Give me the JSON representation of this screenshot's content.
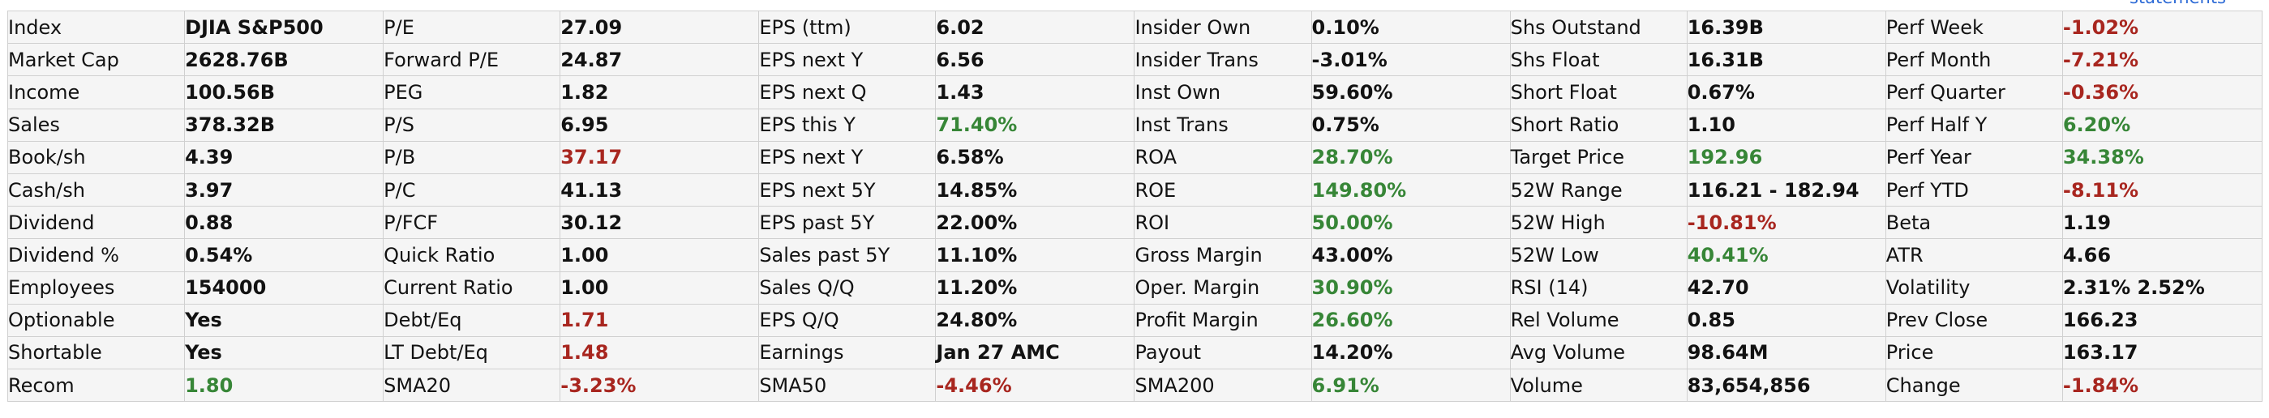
{
  "colors": {
    "green": "#378637",
    "red": "#a8261f",
    "black": "#121212",
    "link-blue": "#2e6bd6",
    "cell-bg": "#f5f5f5",
    "grid": "#d0d0d0",
    "page-bg": "#ffffff"
  },
  "statements_link": {
    "label": "statements"
  },
  "rows": [
    [
      {
        "label": "Index",
        "value": "DJIA S&P500",
        "color": "black"
      },
      {
        "label": "P/E",
        "value": "27.09",
        "color": "black"
      },
      {
        "label": "EPS (ttm)",
        "value": "6.02",
        "color": "black"
      },
      {
        "label": "Insider Own",
        "value": "0.10%",
        "color": "black"
      },
      {
        "label": "Shs Outstand",
        "value": "16.39B",
        "color": "black"
      },
      {
        "label": "Perf Week",
        "value": "-1.02%",
        "color": "red"
      }
    ],
    [
      {
        "label": "Market Cap",
        "value": "2628.76B",
        "color": "black"
      },
      {
        "label": "Forward P/E",
        "value": "24.87",
        "color": "black"
      },
      {
        "label": "EPS next Y",
        "value": "6.56",
        "color": "black"
      },
      {
        "label": "Insider Trans",
        "value": "-3.01%",
        "color": "black"
      },
      {
        "label": "Shs Float",
        "value": "16.31B",
        "color": "black"
      },
      {
        "label": "Perf Month",
        "value": "-7.21%",
        "color": "red"
      }
    ],
    [
      {
        "label": "Income",
        "value": "100.56B",
        "color": "black"
      },
      {
        "label": "PEG",
        "value": "1.82",
        "color": "black"
      },
      {
        "label": "EPS next Q",
        "value": "1.43",
        "color": "black"
      },
      {
        "label": "Inst Own",
        "value": "59.60%",
        "color": "black"
      },
      {
        "label": "Short Float",
        "value": "0.67%",
        "color": "black"
      },
      {
        "label": "Perf Quarter",
        "value": "-0.36%",
        "color": "red"
      }
    ],
    [
      {
        "label": "Sales",
        "value": "378.32B",
        "color": "black"
      },
      {
        "label": "P/S",
        "value": "6.95",
        "color": "black"
      },
      {
        "label": "EPS this Y",
        "value": "71.40%",
        "color": "green"
      },
      {
        "label": "Inst Trans",
        "value": "0.75%",
        "color": "black"
      },
      {
        "label": "Short Ratio",
        "value": "1.10",
        "color": "black"
      },
      {
        "label": "Perf Half Y",
        "value": "6.20%",
        "color": "green"
      }
    ],
    [
      {
        "label": "Book/sh",
        "value": "4.39",
        "color": "black"
      },
      {
        "label": "P/B",
        "value": "37.17",
        "color": "red"
      },
      {
        "label": "EPS next Y",
        "value": "6.58%",
        "color": "black"
      },
      {
        "label": "ROA",
        "value": "28.70%",
        "color": "green"
      },
      {
        "label": "Target Price",
        "value": "192.96",
        "color": "green"
      },
      {
        "label": "Perf Year",
        "value": "34.38%",
        "color": "green"
      }
    ],
    [
      {
        "label": "Cash/sh",
        "value": "3.97",
        "color": "black"
      },
      {
        "label": "P/C",
        "value": "41.13",
        "color": "black"
      },
      {
        "label": "EPS next 5Y",
        "value": "14.85%",
        "color": "black"
      },
      {
        "label": "ROE",
        "value": "149.80%",
        "color": "green"
      },
      {
        "label": "52W Range",
        "value": "116.21 - 182.94",
        "color": "black"
      },
      {
        "label": "Perf YTD",
        "value": "-8.11%",
        "color": "red"
      }
    ],
    [
      {
        "label": "Dividend",
        "value": "0.88",
        "color": "black"
      },
      {
        "label": "P/FCF",
        "value": "30.12",
        "color": "black"
      },
      {
        "label": "EPS past 5Y",
        "value": "22.00%",
        "color": "black"
      },
      {
        "label": "ROI",
        "value": "50.00%",
        "color": "green"
      },
      {
        "label": "52W High",
        "value": "-10.81%",
        "color": "red"
      },
      {
        "label": "Beta",
        "value": "1.19",
        "color": "black"
      }
    ],
    [
      {
        "label": "Dividend %",
        "value": "0.54%",
        "color": "black"
      },
      {
        "label": "Quick Ratio",
        "value": "1.00",
        "color": "black"
      },
      {
        "label": "Sales past 5Y",
        "value": "11.10%",
        "color": "black"
      },
      {
        "label": "Gross Margin",
        "value": "43.00%",
        "color": "black"
      },
      {
        "label": "52W Low",
        "value": "40.41%",
        "color": "green"
      },
      {
        "label": "ATR",
        "value": "4.66",
        "color": "black"
      }
    ],
    [
      {
        "label": "Employees",
        "value": "154000",
        "color": "black"
      },
      {
        "label": "Current Ratio",
        "value": "1.00",
        "color": "black"
      },
      {
        "label": "Sales Q/Q",
        "value": "11.20%",
        "color": "black"
      },
      {
        "label": "Oper. Margin",
        "value": "30.90%",
        "color": "green"
      },
      {
        "label": "RSI (14)",
        "value": "42.70",
        "color": "black"
      },
      {
        "label": "Volatility",
        "value": "2.31% 2.52%",
        "color": "black"
      }
    ],
    [
      {
        "label": "Optionable",
        "value": "Yes",
        "color": "black"
      },
      {
        "label": "Debt/Eq",
        "value": "1.71",
        "color": "red"
      },
      {
        "label": "EPS Q/Q",
        "value": "24.80%",
        "color": "black"
      },
      {
        "label": "Profit Margin",
        "value": "26.60%",
        "color": "green"
      },
      {
        "label": "Rel Volume",
        "value": "0.85",
        "color": "black"
      },
      {
        "label": "Prev Close",
        "value": "166.23",
        "color": "black"
      }
    ],
    [
      {
        "label": "Shortable",
        "value": "Yes",
        "color": "black"
      },
      {
        "label": "LT Debt/Eq",
        "value": "1.48",
        "color": "red"
      },
      {
        "label": "Earnings",
        "value": "Jan 27 AMC",
        "color": "black"
      },
      {
        "label": "Payout",
        "value": "14.20%",
        "color": "black"
      },
      {
        "label": "Avg Volume",
        "value": "98.64M",
        "color": "black"
      },
      {
        "label": "Price",
        "value": "163.17",
        "color": "black"
      }
    ],
    [
      {
        "label": "Recom",
        "value": "1.80",
        "color": "green"
      },
      {
        "label": "SMA20",
        "value": "-3.23%",
        "color": "red"
      },
      {
        "label": "SMA50",
        "value": "-4.46%",
        "color": "red"
      },
      {
        "label": "SMA200",
        "value": "6.91%",
        "color": "green"
      },
      {
        "label": "Volume",
        "value": "83,654,856",
        "color": "black"
      },
      {
        "label": "Change",
        "value": "-1.84%",
        "color": "red"
      }
    ]
  ]
}
